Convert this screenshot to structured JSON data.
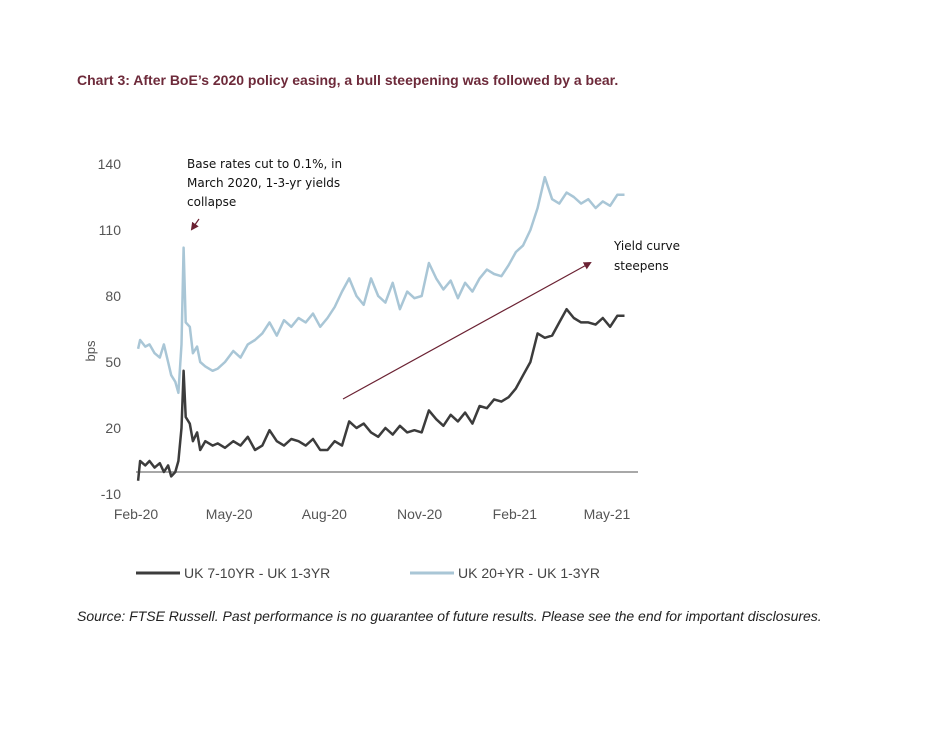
{
  "title": "Chart 3: After BoE’s 2020 policy easing, a bull steepening was followed by a bear.",
  "source": "Source: FTSE Russell. Past performance is no guarantee of future results. Please see the end for important disclosures.",
  "colors": {
    "title": "#6d2a3a",
    "series_dark": "#3c3c3c",
    "series_light": "#a9c6d6",
    "arrow": "#6b2233"
  },
  "chart_data": {
    "type": "line",
    "ylabel": "bps",
    "ylim": [
      -10,
      140
    ],
    "yticks": [
      -10,
      20,
      50,
      80,
      110,
      140
    ],
    "xlim": [
      "2020-02-01",
      "2021-05-31"
    ],
    "xticks": [
      {
        "date": "2020-02-01",
        "label": "Feb-20"
      },
      {
        "date": "2020-05-01",
        "label": "May-20"
      },
      {
        "date": "2020-08-01",
        "label": "Aug-20"
      },
      {
        "date": "2020-11-01",
        "label": "Nov-20"
      },
      {
        "date": "2021-02-01",
        "label": "Feb-21"
      },
      {
        "date": "2021-05-01",
        "label": "May-21"
      }
    ],
    "legend_position": "bottom",
    "series": [
      {
        "name": "UK 7-10YR - UK 1-3YR",
        "color": "#3c3c3c",
        "points": [
          [
            "2020-02-03",
            -4
          ],
          [
            "2020-02-05",
            5
          ],
          [
            "2020-02-10",
            3
          ],
          [
            "2020-02-14",
            5
          ],
          [
            "2020-02-19",
            2
          ],
          [
            "2020-02-24",
            4
          ],
          [
            "2020-02-28",
            0
          ],
          [
            "2020-03-03",
            3
          ],
          [
            "2020-03-06",
            -2
          ],
          [
            "2020-03-10",
            0
          ],
          [
            "2020-03-13",
            5
          ],
          [
            "2020-03-16",
            20
          ],
          [
            "2020-03-18",
            46
          ],
          [
            "2020-03-20",
            25
          ],
          [
            "2020-03-24",
            22
          ],
          [
            "2020-03-27",
            14
          ],
          [
            "2020-03-31",
            18
          ],
          [
            "2020-04-03",
            10
          ],
          [
            "2020-04-08",
            14
          ],
          [
            "2020-04-15",
            12
          ],
          [
            "2020-04-20",
            13
          ],
          [
            "2020-04-27",
            11
          ],
          [
            "2020-05-05",
            14
          ],
          [
            "2020-05-12",
            12
          ],
          [
            "2020-05-19",
            16
          ],
          [
            "2020-05-26",
            10
          ],
          [
            "2020-06-02",
            12
          ],
          [
            "2020-06-09",
            19
          ],
          [
            "2020-06-16",
            14
          ],
          [
            "2020-06-23",
            12
          ],
          [
            "2020-06-30",
            15
          ],
          [
            "2020-07-07",
            14
          ],
          [
            "2020-07-14",
            12
          ],
          [
            "2020-07-21",
            15
          ],
          [
            "2020-07-28",
            10
          ],
          [
            "2020-08-04",
            10
          ],
          [
            "2020-08-11",
            14
          ],
          [
            "2020-08-18",
            12
          ],
          [
            "2020-08-25",
            23
          ],
          [
            "2020-09-01",
            20
          ],
          [
            "2020-09-08",
            22
          ],
          [
            "2020-09-15",
            18
          ],
          [
            "2020-09-22",
            16
          ],
          [
            "2020-09-29",
            20
          ],
          [
            "2020-10-06",
            17
          ],
          [
            "2020-10-13",
            21
          ],
          [
            "2020-10-20",
            18
          ],
          [
            "2020-10-27",
            19
          ],
          [
            "2020-11-03",
            18
          ],
          [
            "2020-11-10",
            28
          ],
          [
            "2020-11-17",
            24
          ],
          [
            "2020-11-24",
            21
          ],
          [
            "2020-12-01",
            26
          ],
          [
            "2020-12-08",
            23
          ],
          [
            "2020-12-15",
            27
          ],
          [
            "2020-12-22",
            22
          ],
          [
            "2020-12-29",
            30
          ],
          [
            "2021-01-05",
            29
          ],
          [
            "2021-01-12",
            33
          ],
          [
            "2021-01-19",
            32
          ],
          [
            "2021-01-26",
            34
          ],
          [
            "2021-02-02",
            38
          ],
          [
            "2021-02-09",
            44
          ],
          [
            "2021-02-16",
            50
          ],
          [
            "2021-02-23",
            63
          ],
          [
            "2021-03-02",
            61
          ],
          [
            "2021-03-09",
            62
          ],
          [
            "2021-03-16",
            68
          ],
          [
            "2021-03-23",
            74
          ],
          [
            "2021-03-30",
            70
          ],
          [
            "2021-04-06",
            68
          ],
          [
            "2021-04-13",
            68
          ],
          [
            "2021-04-20",
            67
          ],
          [
            "2021-04-27",
            70
          ],
          [
            "2021-05-04",
            66
          ],
          [
            "2021-05-11",
            71
          ],
          [
            "2021-05-18",
            71
          ]
        ]
      },
      {
        "name": "UK 20+YR - UK 1-3YR",
        "color": "#a9c6d6",
        "points": [
          [
            "2020-02-03",
            56
          ],
          [
            "2020-02-05",
            60
          ],
          [
            "2020-02-10",
            57
          ],
          [
            "2020-02-14",
            58
          ],
          [
            "2020-02-19",
            54
          ],
          [
            "2020-02-24",
            52
          ],
          [
            "2020-02-28",
            58
          ],
          [
            "2020-03-03",
            50
          ],
          [
            "2020-03-06",
            44
          ],
          [
            "2020-03-10",
            41
          ],
          [
            "2020-03-13",
            36
          ],
          [
            "2020-03-16",
            58
          ],
          [
            "2020-03-18",
            102
          ],
          [
            "2020-03-20",
            68
          ],
          [
            "2020-03-24",
            66
          ],
          [
            "2020-03-27",
            54
          ],
          [
            "2020-03-31",
            57
          ],
          [
            "2020-04-03",
            50
          ],
          [
            "2020-04-08",
            48
          ],
          [
            "2020-04-15",
            46
          ],
          [
            "2020-04-20",
            47
          ],
          [
            "2020-04-27",
            50
          ],
          [
            "2020-05-05",
            55
          ],
          [
            "2020-05-12",
            52
          ],
          [
            "2020-05-19",
            58
          ],
          [
            "2020-05-26",
            60
          ],
          [
            "2020-06-02",
            63
          ],
          [
            "2020-06-09",
            68
          ],
          [
            "2020-06-16",
            62
          ],
          [
            "2020-06-23",
            69
          ],
          [
            "2020-06-30",
            66
          ],
          [
            "2020-07-07",
            70
          ],
          [
            "2020-07-14",
            68
          ],
          [
            "2020-07-21",
            72
          ],
          [
            "2020-07-28",
            66
          ],
          [
            "2020-08-04",
            70
          ],
          [
            "2020-08-11",
            75
          ],
          [
            "2020-08-18",
            82
          ],
          [
            "2020-08-25",
            88
          ],
          [
            "2020-09-01",
            80
          ],
          [
            "2020-09-08",
            76
          ],
          [
            "2020-09-15",
            88
          ],
          [
            "2020-09-22",
            80
          ],
          [
            "2020-09-29",
            77
          ],
          [
            "2020-10-06",
            86
          ],
          [
            "2020-10-13",
            74
          ],
          [
            "2020-10-20",
            82
          ],
          [
            "2020-10-27",
            79
          ],
          [
            "2020-11-03",
            80
          ],
          [
            "2020-11-10",
            95
          ],
          [
            "2020-11-17",
            88
          ],
          [
            "2020-11-24",
            83
          ],
          [
            "2020-12-01",
            87
          ],
          [
            "2020-12-08",
            79
          ],
          [
            "2020-12-15",
            86
          ],
          [
            "2020-12-22",
            82
          ],
          [
            "2020-12-29",
            88
          ],
          [
            "2021-01-05",
            92
          ],
          [
            "2021-01-12",
            90
          ],
          [
            "2021-01-19",
            89
          ],
          [
            "2021-01-26",
            94
          ],
          [
            "2021-02-02",
            100
          ],
          [
            "2021-02-09",
            103
          ],
          [
            "2021-02-16",
            110
          ],
          [
            "2021-02-23",
            120
          ],
          [
            "2021-03-02",
            134
          ],
          [
            "2021-03-09",
            124
          ],
          [
            "2021-03-16",
            122
          ],
          [
            "2021-03-23",
            127
          ],
          [
            "2021-03-30",
            125
          ],
          [
            "2021-04-06",
            122
          ],
          [
            "2021-04-13",
            124
          ],
          [
            "2021-04-20",
            120
          ],
          [
            "2021-04-27",
            123
          ],
          [
            "2021-05-04",
            121
          ],
          [
            "2021-05-11",
            126
          ],
          [
            "2021-05-18",
            126
          ]
        ]
      }
    ],
    "annotations": [
      {
        "id": "base-rates",
        "lines": [
          "Base rates cut to 0.1%, in",
          "March 2020, 1-3-yr yields",
          "collapse"
        ]
      },
      {
        "id": "steepens",
        "lines": [
          "Yield curve",
          "steepens"
        ]
      }
    ]
  }
}
